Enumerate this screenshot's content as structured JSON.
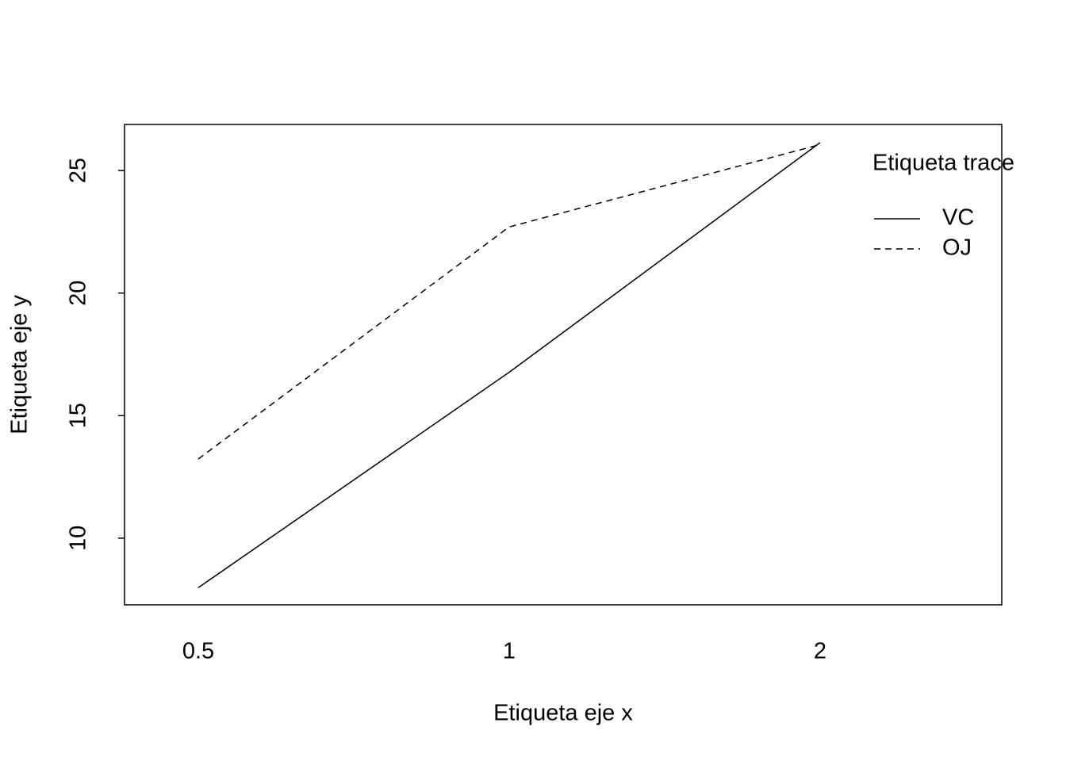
{
  "chart_data": {
    "type": "line",
    "x_label": "Etiqueta eje x",
    "y_label": "Etiqueta eje y",
    "categories": [
      "0.5",
      "1",
      "2"
    ],
    "series": [
      {
        "name": "VC",
        "color": "#000000",
        "linestyle": "solid",
        "values": [
          7.98,
          16.77,
          26.14
        ]
      },
      {
        "name": "OJ",
        "color": "#000000",
        "linestyle": "dashed",
        "values": [
          13.23,
          22.7,
          26.06
        ]
      }
    ],
    "legend_title": "Etiqueta trace",
    "legend_position": "top-right",
    "ylim": [
      7.28,
      26.88
    ],
    "yticks": [
      10,
      15,
      20,
      25
    ],
    "grid": false
  }
}
